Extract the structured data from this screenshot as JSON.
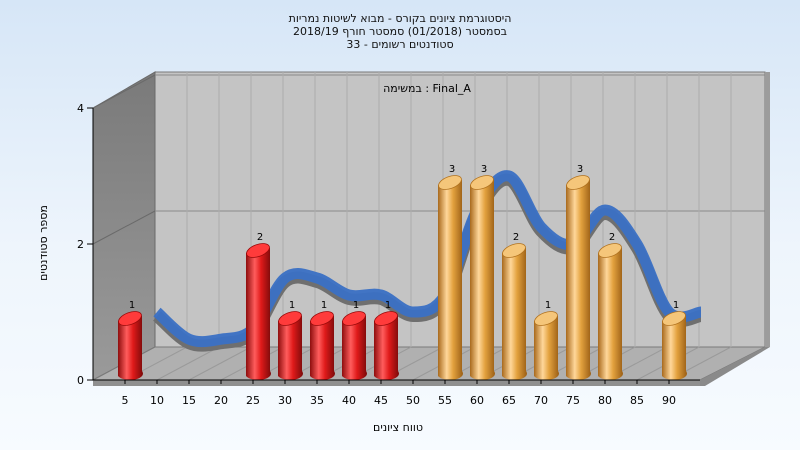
{
  "chart_data": {
    "type": "bar",
    "title_lines": [
      "היסטוגרמת ציונים בקורס - מבוא לשיטות נמריות",
      "בסמסטר  (01/2018)  סמסטר חורף 2018/19",
      "סטודנטים רשומים - 33"
    ],
    "subtitle": "במשימה : Final_A",
    "xlabel": "טווח ציונים",
    "ylabel": "מספר סטודנטים",
    "categories": [
      "5",
      "10",
      "15",
      "20",
      "25",
      "30",
      "35",
      "40",
      "45",
      "50",
      "55",
      "60",
      "65",
      "70",
      "75",
      "80",
      "85",
      "90"
    ],
    "values": [
      1,
      0,
      0,
      0,
      2,
      1,
      1,
      1,
      1,
      0,
      3,
      3,
      2,
      1,
      3,
      2,
      0,
      1
    ],
    "y_ticks": [
      0,
      2,
      4
    ],
    "ylim": [
      0,
      4
    ],
    "colors": {
      "fail": "#e02020",
      "pass": "#e3a23e",
      "curve_front": "#3a70c4",
      "curve_back": "#6f6f6f"
    }
  }
}
